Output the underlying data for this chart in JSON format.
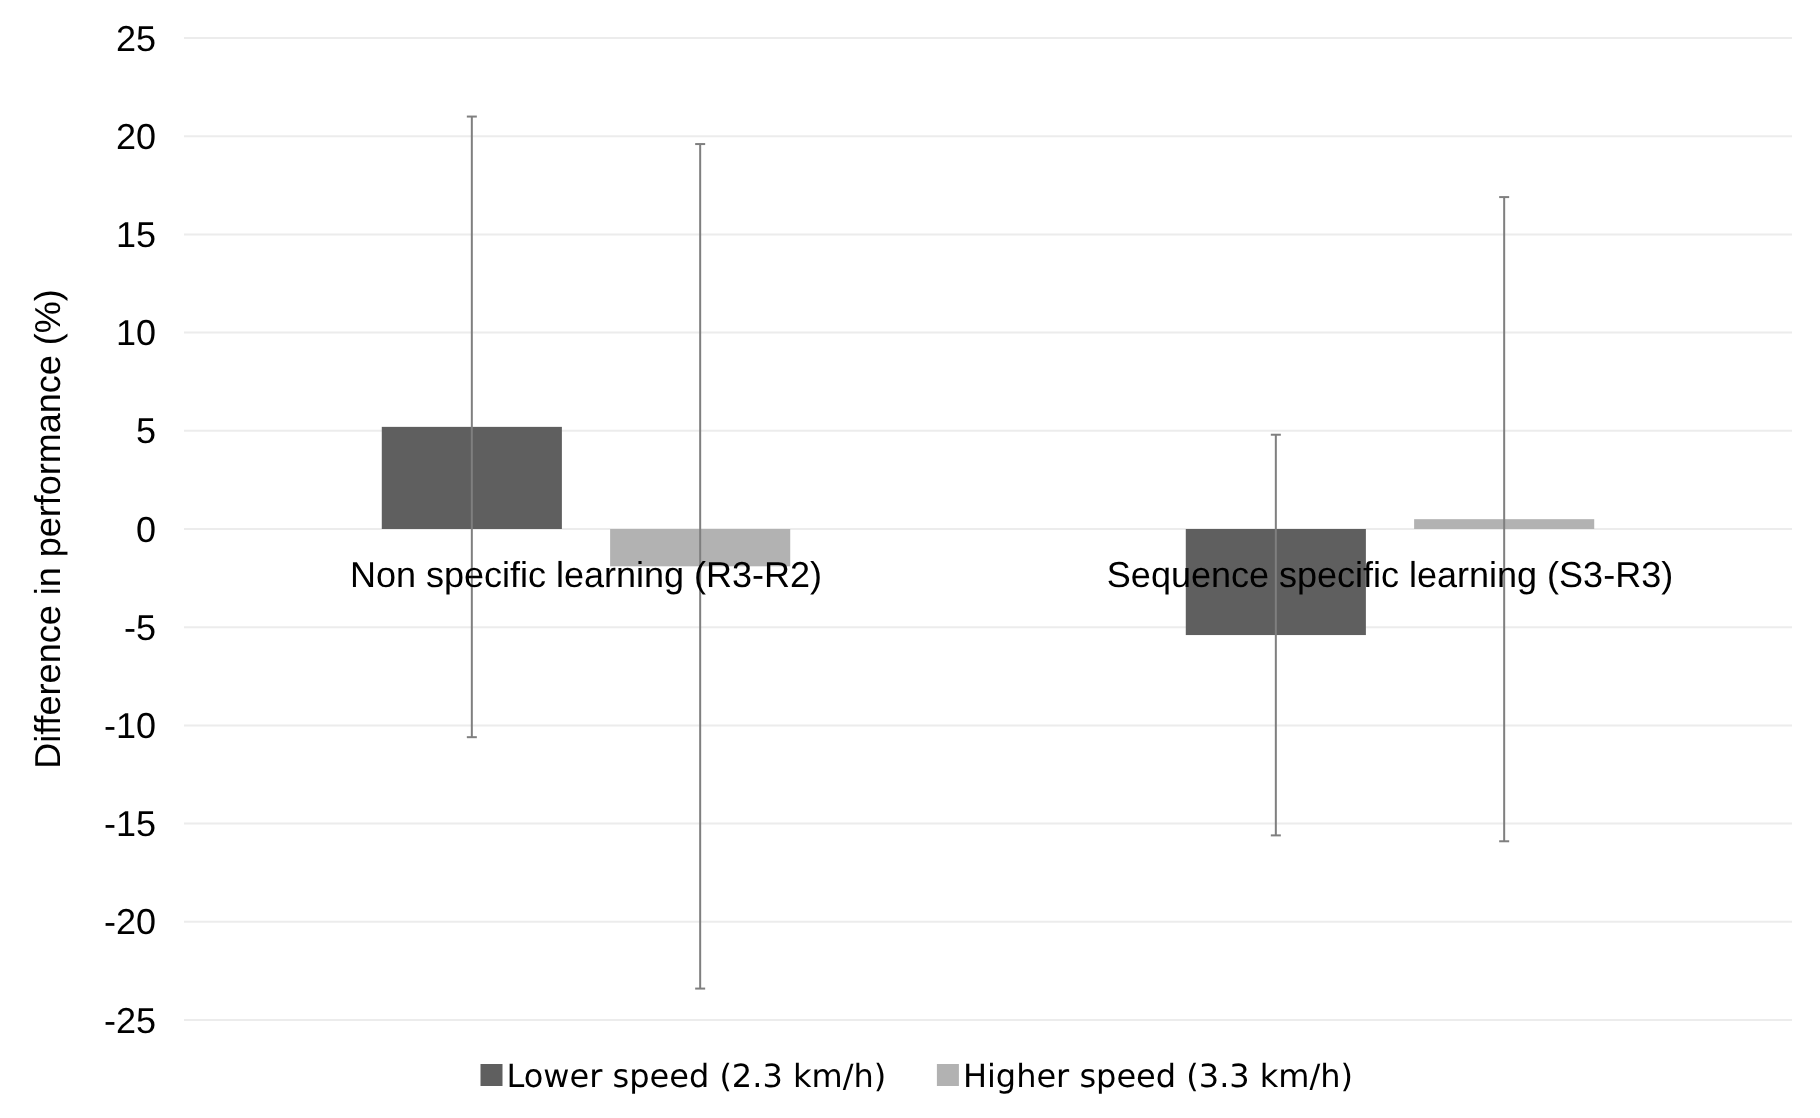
{
  "chart_data": {
    "type": "bar",
    "ylabel": "Difference in performance (%)",
    "categories": [
      "Non specific learning (R3-R2)",
      "Sequence specific learning (S3-R3)"
    ],
    "series": [
      {
        "name": "Lower speed (2.3 km/h)",
        "color": "#5f5f5f",
        "values": [
          5.2,
          -5.4
        ],
        "errors": [
          15.8,
          10.2
        ]
      },
      {
        "name": "Higher speed (3.3 km/h)",
        "color": "#b2b2b2",
        "values": [
          -1.9,
          0.5
        ],
        "errors": [
          21.5,
          16.4
        ]
      }
    ],
    "ylim": [
      -25,
      25
    ],
    "yticks": [
      -25,
      -20,
      -15,
      -10,
      -5,
      0,
      5,
      10,
      15,
      20,
      25
    ],
    "grid": "y",
    "legend": "bottom"
  }
}
